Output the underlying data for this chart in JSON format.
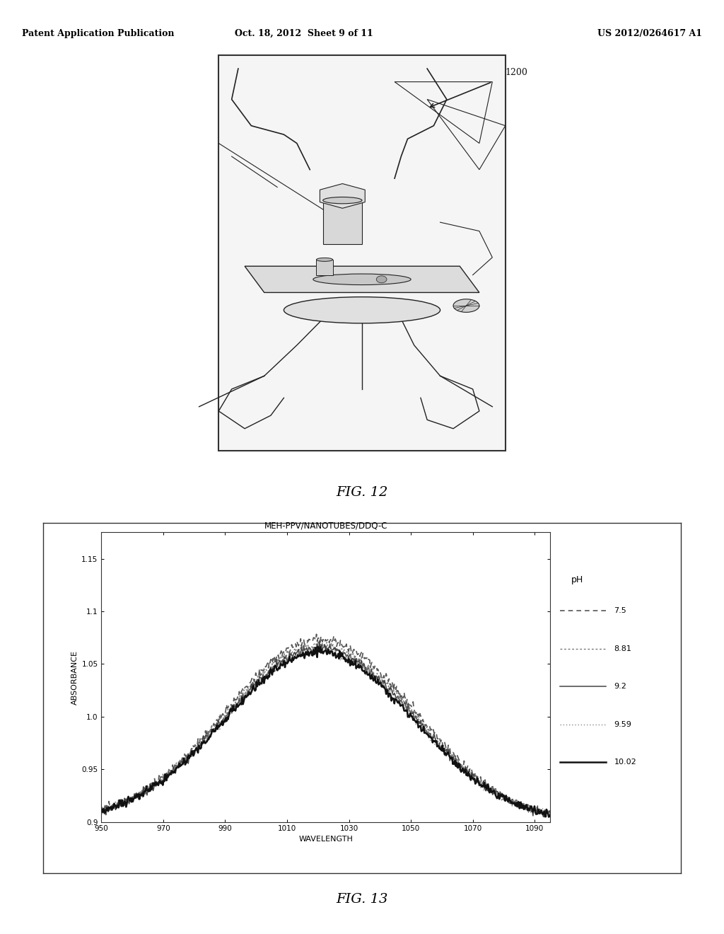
{
  "page_bg": "#ffffff",
  "header_text_left": "Patent Application Publication",
  "header_text_mid": "Oct. 18, 2012  Sheet 9 of 11",
  "header_text_right": "US 2012/0264617 A1",
  "fig12_label": "FIG. 12",
  "fig13_label": "FIG. 13",
  "fig12_ref": "1200",
  "chart_title": "MEH-PPV/NANOTUBES/DDQ-C",
  "xlabel": "WAVELENGTH",
  "ylabel": "ABSORBANCE",
  "xlim": [
    950,
    1095
  ],
  "ylim": [
    0.9,
    1.175
  ],
  "xticks": [
    950,
    970,
    990,
    1010,
    1030,
    1050,
    1070,
    1090
  ],
  "yticks": [
    0.9,
    0.95,
    1.0,
    1.05,
    1.1,
    1.15
  ],
  "legend_title": "pH",
  "legend_entries": [
    "7.5",
    "8.81",
    "9.2",
    "9.59",
    "10.02"
  ],
  "line_styles": [
    "--",
    ":",
    "-",
    ":",
    "-"
  ],
  "line_colors": [
    "#555555",
    "#777777",
    "#333333",
    "#444444",
    "#000000"
  ],
  "line_widths": [
    1.2,
    1.0,
    1.4,
    1.0,
    1.8
  ],
  "background_color": "#ffffff",
  "chart_bg": "#ffffff"
}
